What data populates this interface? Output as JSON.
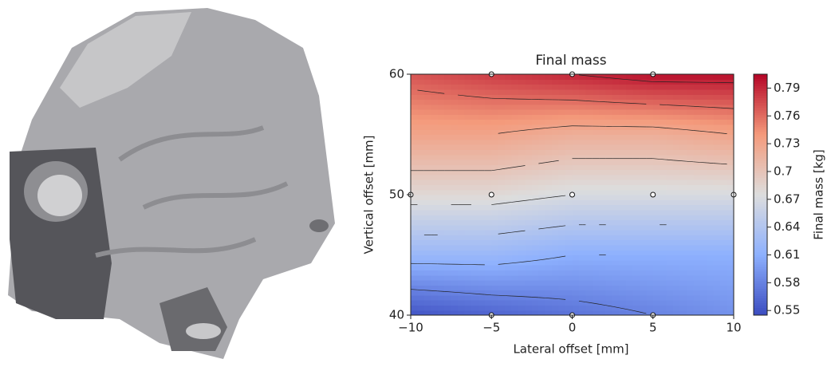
{
  "chart_data": {
    "type": "contour",
    "title": "Final mass",
    "xlabel": "Lateral offset [mm]",
    "ylabel": "Vertical offset [mm]",
    "colorbar_label": "Final mass [kg]",
    "x": [
      -10,
      -5,
      0,
      5,
      10
    ],
    "y": [
      40,
      45,
      50,
      55,
      60
    ],
    "z": [
      [
        0.55,
        0.56,
        0.57,
        0.58,
        0.59
      ],
      [
        0.62,
        0.62,
        0.61,
        0.61,
        0.61
      ],
      [
        0.68,
        0.68,
        0.67,
        0.67,
        0.67
      ],
      [
        0.73,
        0.73,
        0.72,
        0.72,
        0.73
      ],
      [
        0.77,
        0.78,
        0.79,
        0.8,
        0.8
      ]
    ],
    "xlim": [
      -10,
      10
    ],
    "ylim": [
      40,
      60
    ],
    "xticks": [
      {
        "value": -10,
        "label": "−10"
      },
      {
        "value": -5,
        "label": "−5"
      },
      0,
      5,
      10
    ],
    "yticks": [
      40,
      50,
      60
    ],
    "clim": [
      0.545,
      0.805
    ],
    "cticks": [
      0.55,
      0.58,
      0.61,
      0.64,
      0.67,
      0.7,
      0.73,
      0.76,
      0.79
    ],
    "colormap": "coolwarm",
    "samples": {
      "x": [
        -10,
        -5,
        0,
        5,
        10,
        -5,
        0,
        5,
        -5,
        0,
        5
      ],
      "y": [
        50,
        50,
        50,
        50,
        50,
        60,
        60,
        60,
        40,
        40,
        40
      ]
    }
  }
}
